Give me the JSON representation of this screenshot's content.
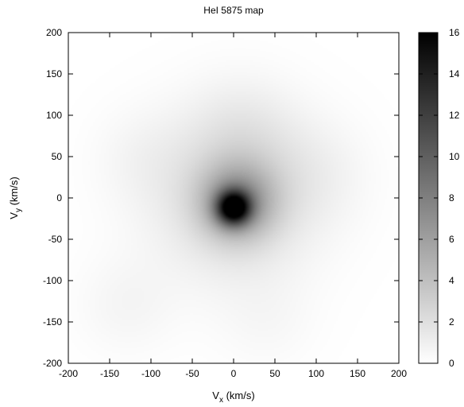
{
  "chart_data": {
    "type": "heatmap",
    "title": "HeI 5875 map",
    "xlabel": "V",
    "xlabel_sub": "x",
    "xlabel_unit": "(km/s)",
    "ylabel": "V",
    "ylabel_sub": "y",
    "ylabel_unit": "(km/s)",
    "xlim": [
      -200,
      200
    ],
    "ylim": [
      -200,
      200
    ],
    "xticks": [
      -200,
      -150,
      -100,
      -50,
      0,
      50,
      100,
      150,
      200
    ],
    "yticks": [
      -200,
      -150,
      -100,
      -50,
      0,
      50,
      100,
      150,
      200
    ],
    "colorbar": {
      "range": [
        0,
        16
      ],
      "ticks": [
        0,
        2,
        4,
        6,
        8,
        10,
        12,
        14,
        16
      ],
      "colormap": "grayscale-inverted",
      "low_color": "#ffffff",
      "high_color": "#000000"
    },
    "components": [
      {
        "vx": 0,
        "vy": -12,
        "sigma": 14,
        "peak": 13
      },
      {
        "vx": 5,
        "vy": -5,
        "sigma": 32,
        "peak": 5.5
      },
      {
        "vx": 0,
        "vy": 0,
        "sigma": 70,
        "peak": 2.2
      },
      {
        "vx": 10,
        "vy": 80,
        "sigma": 45,
        "peak": 0.9
      },
      {
        "vx": -110,
        "vy": 50,
        "sigma": 40,
        "peak": 0.5
      },
      {
        "vx": 100,
        "vy": 30,
        "sigma": 45,
        "peak": 0.6
      },
      {
        "vx": -130,
        "vy": -130,
        "sigma": 40,
        "peak": 0.6
      },
      {
        "vx": 40,
        "vy": -150,
        "sigma": 40,
        "peak": 0.4
      }
    ],
    "grid": false,
    "legend": "none"
  }
}
